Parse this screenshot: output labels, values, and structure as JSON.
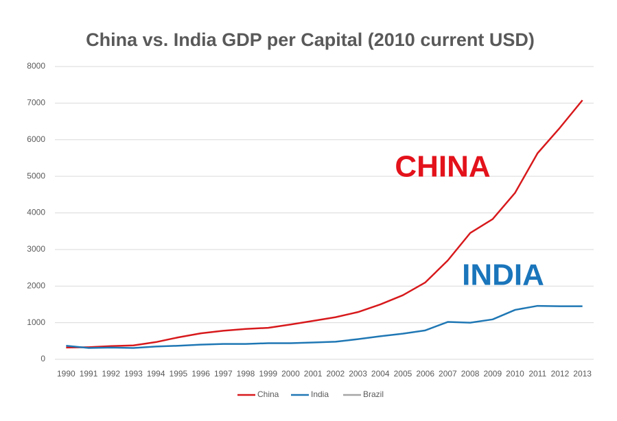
{
  "chart_data": {
    "type": "line",
    "title": "China vs. India GDP per Capital (2010 current USD)",
    "categories": [
      "1990",
      "1991",
      "1992",
      "1993",
      "1994",
      "1995",
      "1996",
      "1997",
      "1998",
      "1999",
      "2000",
      "2001",
      "2002",
      "2003",
      "2004",
      "2005",
      "2006",
      "2007",
      "2008",
      "2009",
      "2010",
      "2011",
      "2012",
      "2013"
    ],
    "series": [
      {
        "name": "China",
        "color": "#d7191c",
        "values": [
          320,
          330,
          360,
          380,
          470,
          600,
          710,
          780,
          830,
          860,
          950,
          1050,
          1150,
          1290,
          1500,
          1750,
          2100,
          2700,
          3450,
          3830,
          4550,
          5630,
          6330,
          7080
        ]
      },
      {
        "name": "India",
        "color": "#1f77b4",
        "values": [
          370,
          310,
          320,
          310,
          350,
          370,
          400,
          420,
          420,
          440,
          440,
          460,
          480,
          550,
          630,
          700,
          790,
          1020,
          1000,
          1090,
          1350,
          1460,
          1450,
          1450
        ]
      },
      {
        "name": "Brazil",
        "color": "#a5a5a5",
        "values": [
          null,
          null,
          null,
          null,
          null,
          null,
          null,
          null,
          null,
          null,
          null,
          null,
          null,
          null,
          null,
          null,
          null,
          null,
          null,
          null,
          null,
          null,
          null,
          null
        ]
      }
    ],
    "annotations": [
      {
        "text": "CHINA",
        "color": "#e3121b"
      },
      {
        "text": "INDIA",
        "color": "#1a75bb"
      }
    ],
    "ylim": [
      0,
      8000
    ],
    "yticks": [
      0,
      1000,
      2000,
      3000,
      4000,
      5000,
      6000,
      7000,
      8000
    ],
    "grid": true,
    "legend": "bottom"
  }
}
